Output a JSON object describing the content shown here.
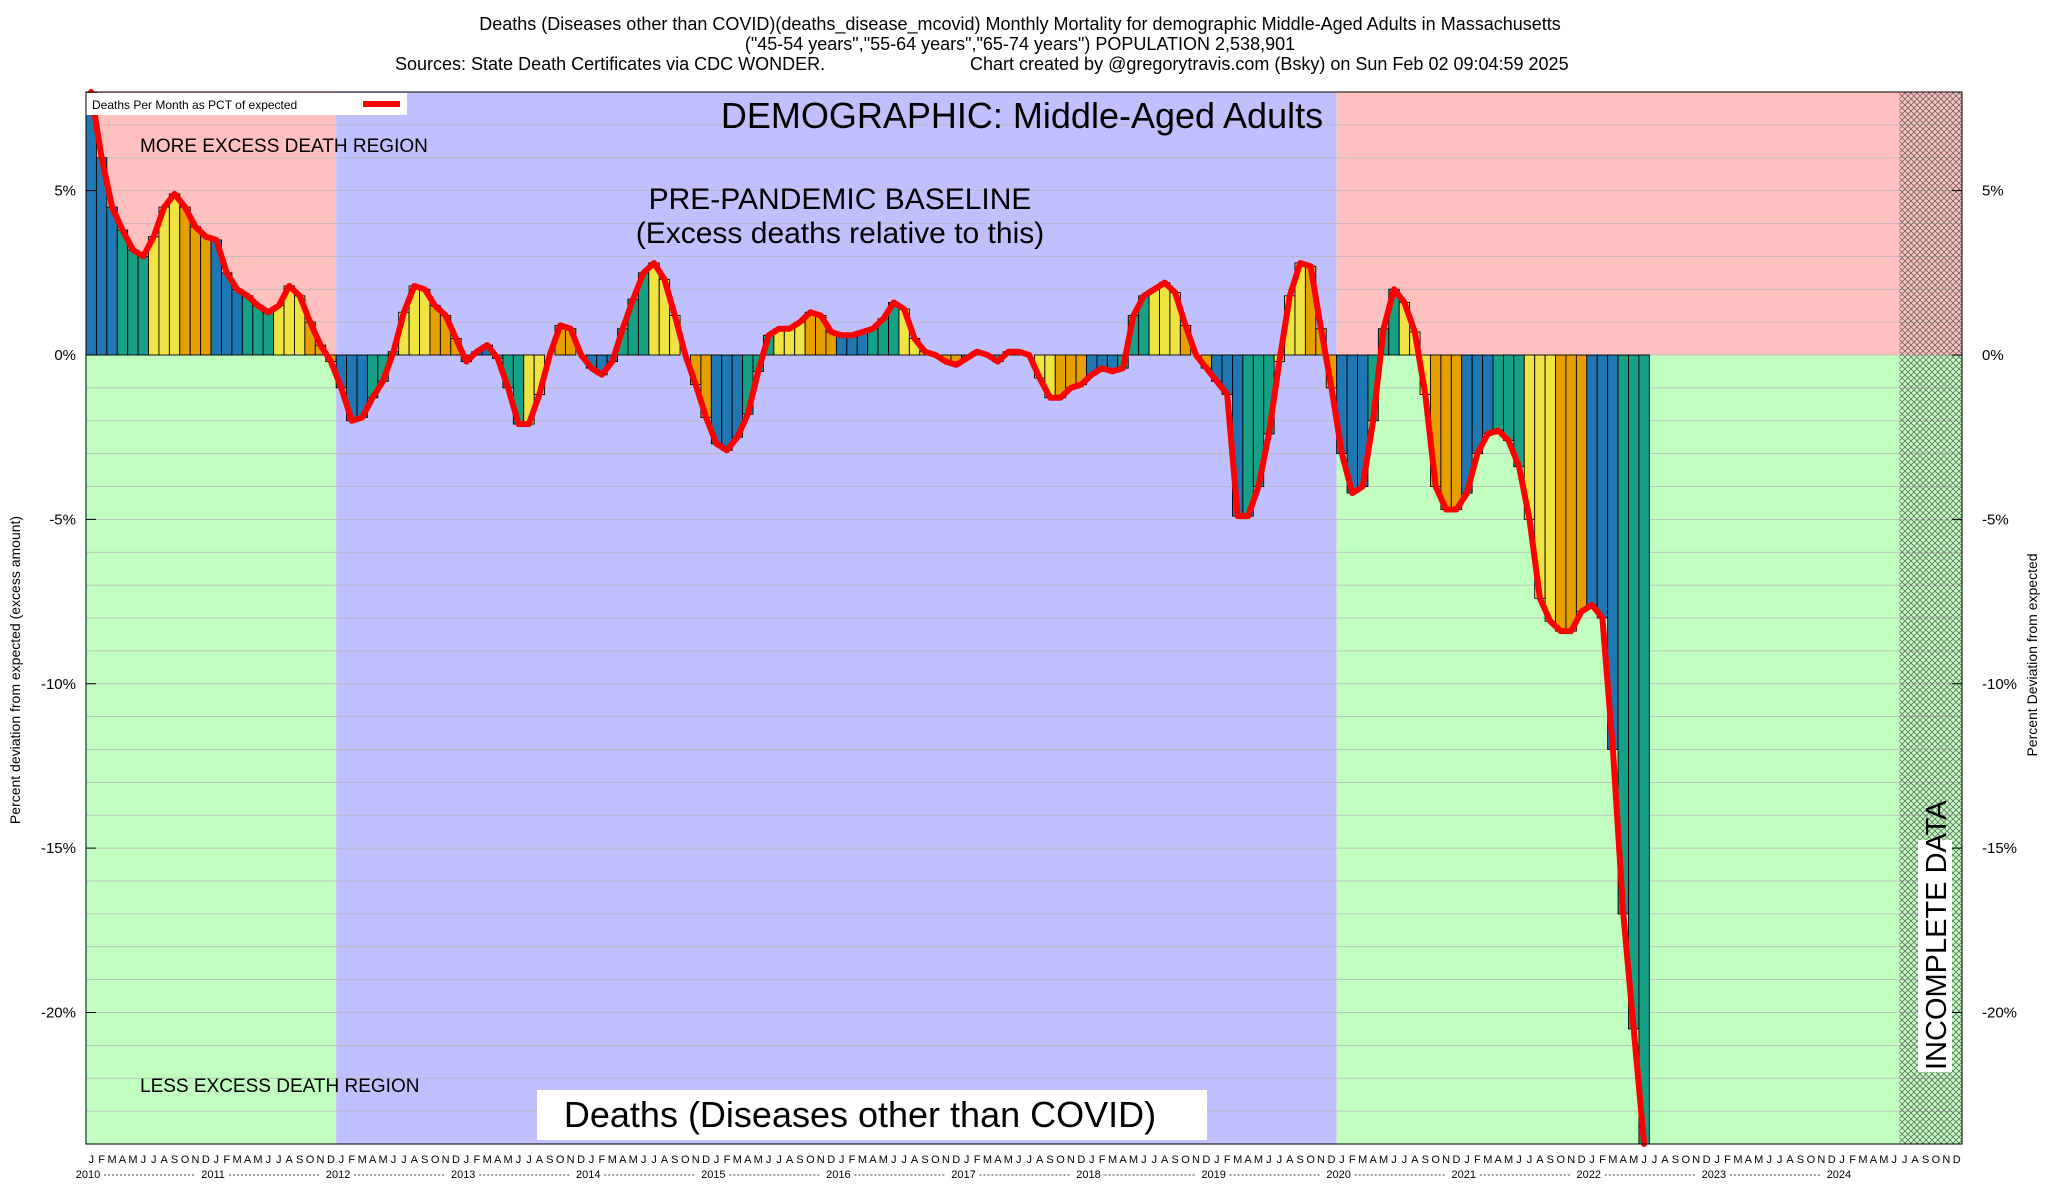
{
  "title": {
    "line1": "Deaths (Diseases other than COVID)(deaths_disease_mcovid) Monthly Mortality for demographic Middle-Aged Adults in Massachusetts",
    "line2": "(\"45-54 years\",\"55-64 years\",\"65-74 years\") POPULATION 2,538,901",
    "line3_left": "Sources: State Death Certificates via CDC WONDER.",
    "line3_right": "Chart created by @gregorytravis.com (Bsky) on Sun Feb 02 09:04:59 2025"
  },
  "annotations": {
    "demographic": "DEMOGRAPHIC: Middle-Aged Adults",
    "baseline_line1": "PRE-PANDEMIC BASELINE",
    "baseline_line2": "(Excess deaths relative to this)",
    "more_region": "MORE EXCESS DEATH REGION",
    "less_region": "LESS EXCESS DEATH REGION",
    "bottom_label": "Deaths (Diseases other than COVID)",
    "incomplete": "INCOMPLETE DATA"
  },
  "colors": {
    "more_region": "#ffc0c0",
    "less_region": "#c0ffc0",
    "baseline_region": "#c0c0ff",
    "line": "#ff0000",
    "bar_palette": [
      "#1f77b4",
      "#16a085",
      "#f0e442",
      "#e69f00"
    ]
  },
  "chart_data": {
    "type": "bar",
    "x_label": "",
    "ylabel_left": "Percent deviation from expected (excess amount)",
    "ylabel_right": "Percent Deviation from expected",
    "legend": {
      "label": "Deaths Per Month as PCT of expected",
      "position": "top-left"
    },
    "ylim": [
      -24,
      8
    ],
    "yticks": [
      5,
      0,
      -5,
      -10,
      -15,
      -20
    ],
    "ytick_labels": [
      "5%",
      "0%",
      "-5%",
      "-10%",
      "-15%",
      "-20%"
    ],
    "month_letters": [
      "J",
      "F",
      "M",
      "A",
      "M",
      "J",
      "J",
      "A",
      "S",
      "O",
      "N",
      "D"
    ],
    "years": [
      "2010",
      "2011",
      "2012",
      "2013",
      "2014",
      "2015",
      "2016",
      "2017",
      "2018",
      "2019",
      "2020",
      "2021",
      "2022",
      "2023",
      "2024"
    ],
    "start": "2010-01",
    "regions": [
      {
        "name": "more-excess-2010-2011",
        "from": "2010-01",
        "to": "2011-12",
        "kind": "excess"
      },
      {
        "name": "pre-pandemic-baseline",
        "from": "2012-01",
        "to": "2019-12",
        "kind": "baseline"
      },
      {
        "name": "more-excess-2020-2024",
        "from": "2020-01",
        "to": "2024-12",
        "kind": "excess"
      }
    ],
    "incomplete_from": "2024-07",
    "values": [
      8.0,
      6.0,
      4.5,
      3.8,
      3.2,
      3.0,
      3.6,
      4.5,
      4.9,
      4.5,
      3.9,
      3.6,
      3.5,
      2.5,
      2.0,
      1.8,
      1.5,
      1.3,
      1.5,
      2.1,
      1.8,
      1.0,
      0.3,
      -0.2,
      -1.0,
      -2.0,
      -1.9,
      -1.3,
      -0.8,
      0.1,
      1.3,
      2.1,
      2.0,
      1.5,
      1.2,
      0.5,
      -0.2,
      0.1,
      0.3,
      -0.1,
      -1.0,
      -2.1,
      -2.1,
      -1.2,
      0.0,
      0.9,
      0.8,
      0.0,
      -0.4,
      -0.6,
      -0.2,
      0.8,
      1.7,
      2.5,
      2.8,
      2.3,
      1.2,
      0.0,
      -0.9,
      -1.9,
      -2.7,
      -2.9,
      -2.5,
      -1.8,
      -0.5,
      0.6,
      0.8,
      0.8,
      1.0,
      1.3,
      1.2,
      0.7,
      0.6,
      0.6,
      0.7,
      0.8,
      1.1,
      1.6,
      1.4,
      0.5,
      0.1,
      0.0,
      -0.2,
      -0.3,
      -0.1,
      0.1,
      0.0,
      -0.2,
      0.1,
      0.1,
      0.0,
      -0.7,
      -1.3,
      -1.3,
      -1.0,
      -0.9,
      -0.6,
      -0.4,
      -0.5,
      -0.4,
      1.2,
      1.8,
      2.0,
      2.2,
      1.9,
      0.9,
      0.0,
      -0.4,
      -0.8,
      -1.2,
      -4.9,
      -4.9,
      -4.0,
      -2.4,
      -0.2,
      1.8,
      2.8,
      2.7,
      0.8,
      -1.0,
      -3.0,
      -4.2,
      -4.0,
      -2.0,
      0.8,
      2.0,
      1.6,
      0.7,
      -1.2,
      -4.0,
      -4.7,
      -4.7,
      -4.2,
      -3.0,
      -2.4,
      -2.3,
      -2.6,
      -3.4,
      -5.0,
      -7.4,
      -8.1,
      -8.4,
      -8.4,
      -7.8,
      -7.6,
      -8.0,
      -12.0,
      -17.0,
      -20.5,
      -24.0
    ]
  }
}
